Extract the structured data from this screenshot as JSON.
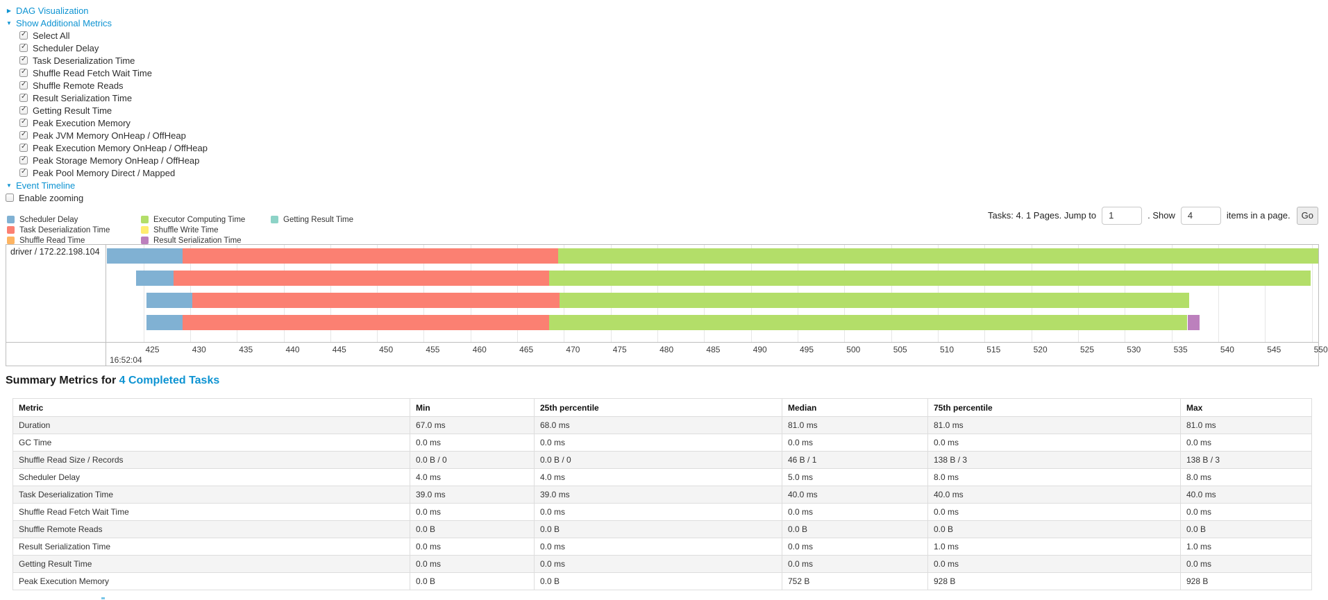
{
  "controls": {
    "dag_label": "DAG Visualization",
    "additional_metrics_label": "Show Additional Metrics",
    "metrics": [
      {
        "label": "Select All",
        "checked": true
      },
      {
        "label": "Scheduler Delay",
        "checked": true
      },
      {
        "label": "Task Deserialization Time",
        "checked": true
      },
      {
        "label": "Shuffle Read Fetch Wait Time",
        "checked": true
      },
      {
        "label": "Shuffle Remote Reads",
        "checked": true
      },
      {
        "label": "Result Serialization Time",
        "checked": true
      },
      {
        "label": "Getting Result Time",
        "checked": true
      },
      {
        "label": "Peak Execution Memory",
        "checked": true
      },
      {
        "label": "Peak JVM Memory OnHeap / OffHeap",
        "checked": true
      },
      {
        "label": "Peak Execution Memory OnHeap / OffHeap",
        "checked": true
      },
      {
        "label": "Peak Storage Memory OnHeap / OffHeap",
        "checked": true
      },
      {
        "label": "Peak Pool Memory Direct / Mapped",
        "checked": true
      }
    ],
    "event_timeline_label": "Event Timeline",
    "enable_zooming": {
      "label": "Enable zooming",
      "checked": false
    }
  },
  "legend": {
    "items": [
      {
        "key": "scheduler-delay",
        "label": "Scheduler Delay",
        "color": "#80B1D3"
      },
      {
        "key": "task-deserialization-time",
        "label": "Task Deserialization Time",
        "color": "#FB8072"
      },
      {
        "key": "shuffle-read-time",
        "label": "Shuffle Read Time",
        "color": "#FDB462"
      },
      {
        "key": "executor-computing-time",
        "label": "Executor Computing Time",
        "color": "#B3DE69"
      },
      {
        "key": "shuffle-write-time",
        "label": "Shuffle Write Time",
        "color": "#FFED6F"
      },
      {
        "key": "result-serialization-time",
        "label": "Result Serialization Time",
        "color": "#BC80BD"
      },
      {
        "key": "getting-result-time",
        "label": "Getting Result Time",
        "color": "#8DD3C7"
      }
    ]
  },
  "pagination": {
    "tasks_text": "Tasks: 4. 1 Pages. Jump to",
    "jump_value": "1",
    "mid_text": ". Show",
    "show_value": "4",
    "items_text": "items in a page.",
    "go_label": "Go"
  },
  "chart_data": {
    "type": "timeline",
    "group_label": "driver / 172.22.198.104",
    "axis_major_label": "16:52:04",
    "ticks": [
      425,
      430,
      435,
      440,
      445,
      450,
      455,
      460,
      465,
      470,
      475,
      480,
      485,
      490,
      495,
      500,
      505,
      510,
      515,
      520,
      525,
      530,
      535,
      540,
      545,
      550
    ],
    "time_min": 421.1,
    "time_max": 550.7,
    "tasks": [
      {
        "segments": [
          {
            "name": "scheduler-delay",
            "start": 421.1,
            "end": 429.2
          },
          {
            "name": "task-deserialization-time",
            "start": 429.2,
            "end": 469.4
          },
          {
            "name": "executor-computing-time",
            "start": 469.4,
            "end": 550.7
          }
        ]
      },
      {
        "segments": [
          {
            "name": "scheduler-delay",
            "start": 424.2,
            "end": 428.2
          },
          {
            "name": "task-deserialization-time",
            "start": 428.2,
            "end": 468.4
          },
          {
            "name": "executor-computing-time",
            "start": 468.4,
            "end": 549.9
          }
        ]
      },
      {
        "segments": [
          {
            "name": "scheduler-delay",
            "start": 425.3,
            "end": 430.2
          },
          {
            "name": "task-deserialization-time",
            "start": 430.2,
            "end": 469.5
          },
          {
            "name": "executor-computing-time",
            "start": 469.5,
            "end": 536.9
          }
        ]
      },
      {
        "segments": [
          {
            "name": "scheduler-delay",
            "start": 425.3,
            "end": 429.2
          },
          {
            "name": "task-deserialization-time",
            "start": 429.2,
            "end": 468.4
          },
          {
            "name": "executor-computing-time",
            "start": 468.4,
            "end": 536.7
          },
          {
            "name": "result-serialization-time",
            "start": 536.7,
            "end": 538.0
          }
        ]
      }
    ]
  },
  "summary": {
    "title_prefix": "Summary Metrics for ",
    "title_link": "4 Completed Tasks",
    "headers": [
      "Metric",
      "Min",
      "25th percentile",
      "Median",
      "75th percentile",
      "Max"
    ],
    "rows": [
      [
        "Duration",
        "67.0 ms",
        "68.0 ms",
        "81.0 ms",
        "81.0 ms",
        "81.0 ms"
      ],
      [
        "GC Time",
        "0.0 ms",
        "0.0 ms",
        "0.0 ms",
        "0.0 ms",
        "0.0 ms"
      ],
      [
        "Shuffle Read Size / Records",
        "0.0 B / 0",
        "0.0 B / 0",
        "46 B / 1",
        "138 B / 3",
        "138 B / 3"
      ],
      [
        "Scheduler Delay",
        "4.0 ms",
        "4.0 ms",
        "5.0 ms",
        "8.0 ms",
        "8.0 ms"
      ],
      [
        "Task Deserialization Time",
        "39.0 ms",
        "39.0 ms",
        "40.0 ms",
        "40.0 ms",
        "40.0 ms"
      ],
      [
        "Shuffle Read Fetch Wait Time",
        "0.0 ms",
        "0.0 ms",
        "0.0 ms",
        "0.0 ms",
        "0.0 ms"
      ],
      [
        "Shuffle Remote Reads",
        "0.0 B",
        "0.0 B",
        "0.0 B",
        "0.0 B",
        "0.0 B"
      ],
      [
        "Result Serialization Time",
        "0.0 ms",
        "0.0 ms",
        "0.0 ms",
        "1.0 ms",
        "1.0 ms"
      ],
      [
        "Getting Result Time",
        "0.0 ms",
        "0.0 ms",
        "0.0 ms",
        "0.0 ms",
        "0.0 ms"
      ],
      [
        "Peak Execution Memory",
        "0.0 B",
        "0.0 B",
        "752 B",
        "928 B",
        "928 B"
      ]
    ]
  },
  "colors": {
    "link_blue": "#0d93d2",
    "grid_line": "#e6e6e6",
    "timeline_border": "#bdbdbd"
  }
}
